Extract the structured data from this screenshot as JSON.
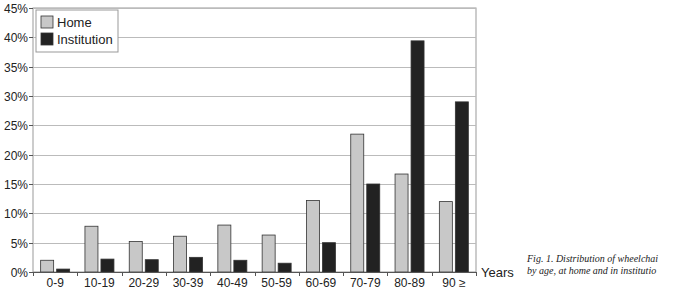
{
  "chart_data": {
    "type": "bar",
    "categories": [
      "0-9",
      "10-19",
      "20-29",
      "30-39",
      "40-49",
      "50-59",
      "60-69",
      "70-79",
      "80-89",
      "90 ≥"
    ],
    "series": [
      {
        "name": "Home",
        "color": "#c8c8c8",
        "values": [
          2.0,
          7.8,
          5.2,
          6.1,
          8.0,
          6.3,
          12.2,
          23.5,
          16.7,
          12.0
        ]
      },
      {
        "name": "Institution",
        "color": "#222222",
        "values": [
          0.5,
          2.2,
          2.1,
          2.5,
          2.0,
          1.5,
          5.0,
          15.0,
          39.4,
          29.0
        ]
      }
    ],
    "x_label": "Years",
    "caption": [
      "Fig. 1. Distribution of wheelchai",
      "by age, at home and in institutio"
    ],
    "ylim": [
      0,
      45
    ],
    "yticks": [
      {
        "value": 0,
        "label": "0%"
      },
      {
        "value": 5,
        "label": "5%"
      },
      {
        "value": 10,
        "label": "10%"
      },
      {
        "value": 15,
        "label": "15%"
      },
      {
        "value": 20,
        "label": "20%"
      },
      {
        "value": 25,
        "label": "25%"
      },
      {
        "value": 30,
        "label": "30%"
      },
      {
        "value": 35,
        "label": "35%"
      },
      {
        "value": 40,
        "label": "40%"
      },
      {
        "value": 45,
        "label": "45%"
      }
    ],
    "grid": true,
    "legend": "top-left"
  }
}
